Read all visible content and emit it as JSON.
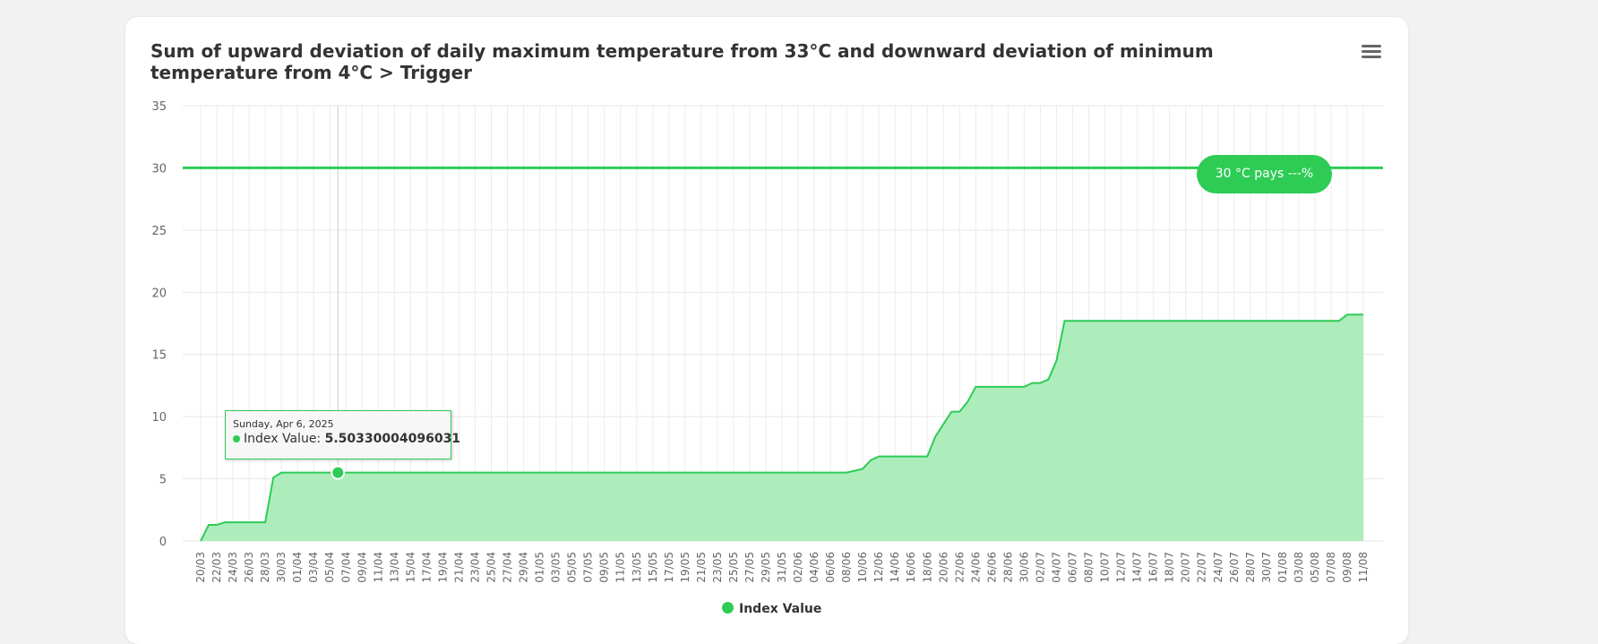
{
  "chart_data": {
    "type": "area",
    "title": "Sum of upward deviation of daily maximum temperature from 33°C and downward deviation of minimum temperature from 4°C > Trigger",
    "ylim": [
      0,
      35
    ],
    "y_ticks": [
      "0",
      "5",
      "10",
      "15",
      "20",
      "25",
      "30",
      "35"
    ],
    "x_tick_labels": [
      "20/03",
      "22/03",
      "24/03",
      "26/03",
      "28/03",
      "30/03",
      "01/04",
      "03/04",
      "05/04",
      "07/04",
      "09/04",
      "11/04",
      "13/04",
      "15/04",
      "17/04",
      "19/04",
      "21/04",
      "23/04",
      "25/04",
      "27/04",
      "29/04",
      "01/05",
      "03/05",
      "05/05",
      "07/05",
      "09/05",
      "11/05",
      "13/05",
      "15/05",
      "17/05",
      "19/05",
      "21/05",
      "23/05",
      "25/05",
      "27/05",
      "29/05",
      "31/05",
      "02/06",
      "04/06",
      "06/06",
      "08/06",
      "10/06",
      "12/06",
      "14/06",
      "16/06",
      "18/06",
      "20/06",
      "22/06",
      "24/06",
      "26/06",
      "28/06",
      "30/06",
      "02/07",
      "04/07",
      "06/07",
      "08/07",
      "10/07",
      "12/07",
      "14/07",
      "16/07",
      "18/07",
      "20/07",
      "22/07",
      "24/07",
      "26/07",
      "28/07",
      "30/07",
      "01/08",
      "03/08",
      "05/08",
      "07/08",
      "09/08",
      "11/08"
    ],
    "grid": true,
    "legend_position": "bottom-center",
    "series": [
      {
        "name": "Index Value",
        "color": "#2ecc55",
        "fill": "#adedbc",
        "points": [
          [
            "20/03",
            0
          ],
          [
            "21/03",
            1.3
          ],
          [
            "22/03",
            1.3
          ],
          [
            "23/03",
            1.5
          ],
          [
            "24/03",
            1.5
          ],
          [
            "28/03",
            1.5
          ],
          [
            "29/03",
            5.1
          ],
          [
            "30/03",
            5.5
          ],
          [
            "06/04",
            5.50330004096031
          ],
          [
            "08/06",
            5.5
          ],
          [
            "10/06",
            5.8
          ],
          [
            "11/06",
            6.5
          ],
          [
            "12/06",
            6.8
          ],
          [
            "18/06",
            6.8
          ],
          [
            "19/06",
            8.4
          ],
          [
            "21/06",
            10.4
          ],
          [
            "22/06",
            10.4
          ],
          [
            "23/06",
            11.2
          ],
          [
            "24/06",
            12.4
          ],
          [
            "30/06",
            12.4
          ],
          [
            "01/07",
            12.7
          ],
          [
            "02/07",
            12.7
          ],
          [
            "03/07",
            13.0
          ],
          [
            "04/07",
            14.5
          ],
          [
            "05/07",
            17.7
          ],
          [
            "08/08",
            17.7
          ],
          [
            "09/08",
            18.2
          ],
          [
            "11/08",
            18.2
          ]
        ]
      }
    ],
    "trigger": {
      "value": 30,
      "label": "30 °C pays ---%",
      "color": "#2ecc55"
    },
    "tooltip": {
      "date": "Sunday, Apr 6, 2025",
      "series_label": "Index Value:",
      "value": "5.50330004096031",
      "point_x": "06/04",
      "point_y": 5.50330004096031
    },
    "legend": [
      {
        "name": "Index Value",
        "color": "#2ecc55"
      }
    ]
  }
}
